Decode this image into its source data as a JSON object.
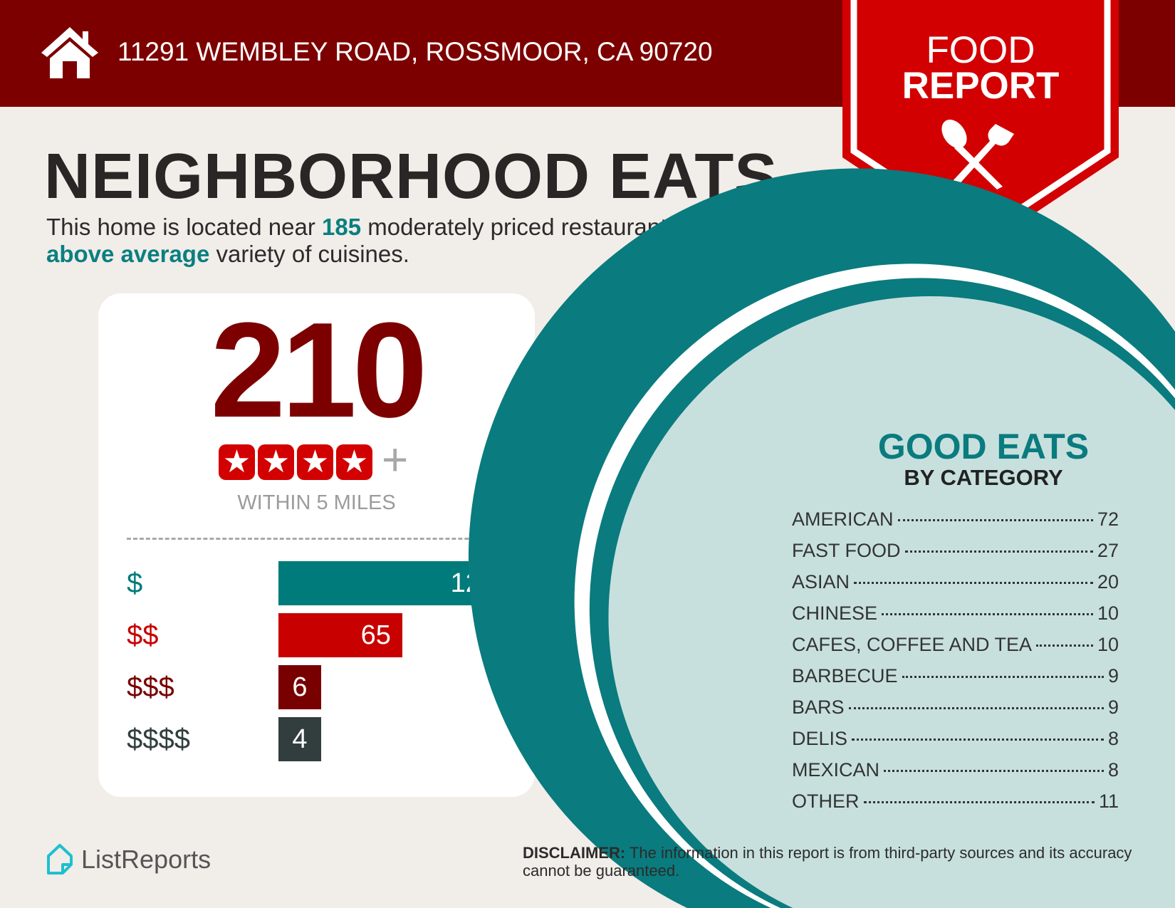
{
  "header": {
    "address": "11291 WEMBLEY ROAD, ROSSMOOR, CA 90720",
    "icon": "house-icon"
  },
  "ribbon": {
    "line1": "FOOD",
    "line2": "REPORT",
    "icon": "fork-spoon-icon"
  },
  "title": "NEIGHBORHOOD EATS",
  "subtitle": {
    "pre": "This home is located near ",
    "count": "185",
    "mid": " moderately priced restaurants and has an ",
    "variety": "above average",
    "post": " variety of cuisines."
  },
  "summary": {
    "total": "210",
    "stars": 4,
    "plus": "+",
    "within": "WITHIN 5 MILES"
  },
  "price_bars": [
    {
      "label": "$",
      "value": 120,
      "color": "#007b7b"
    },
    {
      "label": "$$",
      "value": 65,
      "color": "#c80000"
    },
    {
      "label": "$$$",
      "value": 6,
      "color": "#790000"
    },
    {
      "label": "$$$$",
      "value": 4,
      "color": "#323e3e"
    }
  ],
  "categories": {
    "title": "GOOD EATS",
    "subtitle": "BY CATEGORY",
    "items": [
      {
        "name": "AMERICAN",
        "count": "72"
      },
      {
        "name": "FAST FOOD",
        "count": "27"
      },
      {
        "name": "ASIAN",
        "count": "20"
      },
      {
        "name": "CHINESE",
        "count": "10"
      },
      {
        "name": "CAFES, COFFEE AND TEA",
        "count": "10"
      },
      {
        "name": "BARBECUE",
        "count": "9"
      },
      {
        "name": "BARS",
        "count": "9"
      },
      {
        "name": "DELIS",
        "count": "8"
      },
      {
        "name": "MEXICAN",
        "count": "8"
      },
      {
        "name": "OTHER",
        "count": "11"
      }
    ]
  },
  "footer": {
    "logo": "ListReports",
    "disclaimer_label": "DISCLAIMER:",
    "disclaimer_text": " The information in this report is from third-party sources and its accuracy cannot be guaranteed."
  },
  "colors": {
    "header": "#7d0000",
    "ribbon": "#d20000",
    "teal": "#0a7b7e",
    "plate": "#c7e0de",
    "background": "#f1ede9"
  }
}
